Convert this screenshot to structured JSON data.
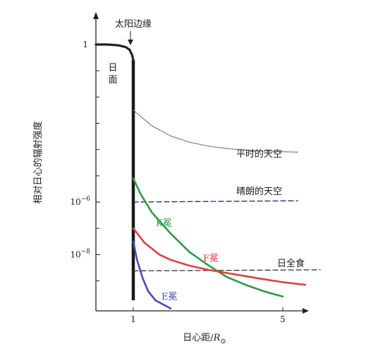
{
  "chart_data": {
    "type": "line",
    "title": "",
    "xlabel": "日心距/",
    "xlabel_unit_symbol": "R",
    "xlabel_unit_subscript": "⊙",
    "ylabel": "相对日心的辐射强度",
    "xscale": "linear",
    "yscale": "log",
    "xlim": [
      0.0,
      6.2
    ],
    "ylim_log10": [
      -10.0,
      0.4
    ],
    "x_ticks": [
      {
        "value": 1,
        "label": "1"
      },
      {
        "value": 5,
        "label": "5"
      }
    ],
    "y_ticks": [
      {
        "log10": 0,
        "base": "1",
        "exp": ""
      },
      {
        "log10": -6,
        "base": "10",
        "exp": "−6"
      },
      {
        "log10": -8,
        "base": "10",
        "exp": "−8"
      }
    ],
    "y_minor_ticks_log10": [
      -1,
      -2,
      -3,
      -4,
      -5,
      -7,
      -9
    ],
    "limb_marker": {
      "x": 1,
      "label": "太阳边缘"
    },
    "disk_label": [
      "日",
      "面"
    ],
    "series": [
      {
        "name": "日面",
        "color": "#222222",
        "style": "solid",
        "x": [
          0.0,
          0.3,
          0.6,
          0.8,
          0.9,
          0.97,
          1.0
        ],
        "log10_y": [
          0.0,
          0.0,
          -0.03,
          -0.1,
          -0.2,
          -0.4,
          -0.6
        ]
      },
      {
        "name": "平时的天空",
        "color": "#6a6a8a",
        "style": "dotted",
        "x": [
          1.0,
          1.5,
          2.0,
          2.5,
          3.0,
          3.5,
          4.0,
          4.5,
          5.0,
          5.4
        ],
        "log10_y": [
          -2.5,
          -3.1,
          -3.48,
          -3.72,
          -3.87,
          -3.96,
          -4.02,
          -4.06,
          -4.08,
          -4.1
        ]
      },
      {
        "name": "晴朗的天空",
        "color": "#1e2a5e",
        "style": "dashed",
        "x": [
          1.0,
          5.4
        ],
        "log10_y": [
          -6.0,
          -5.95
        ]
      },
      {
        "name": "日全食",
        "color": "#333333",
        "style": "dashed",
        "x": [
          1.0,
          6.0
        ],
        "log10_y": [
          -8.62,
          -8.58
        ]
      },
      {
        "name": "K冕",
        "color": "#2f9a4a",
        "style": "solid",
        "x": [
          1.0,
          1.2,
          1.5,
          2.0,
          2.5,
          3.0,
          3.5,
          4.0,
          4.5,
          5.0
        ],
        "log10_y": [
          -5.1,
          -5.7,
          -6.4,
          -7.2,
          -7.9,
          -8.4,
          -8.85,
          -9.15,
          -9.4,
          -9.6
        ]
      },
      {
        "name": "F冕",
        "color": "#e04040",
        "style": "solid",
        "x": [
          1.0,
          1.3,
          1.7,
          2.0,
          2.5,
          3.0,
          3.5,
          4.0,
          4.5,
          5.0,
          5.6
        ],
        "log10_y": [
          -7.0,
          -7.55,
          -8.0,
          -8.2,
          -8.42,
          -8.58,
          -8.7,
          -8.82,
          -8.94,
          -9.05,
          -9.15
        ]
      },
      {
        "name": "E冕",
        "color": "#4a4aaa",
        "style": "solid",
        "x": [
          1.0,
          1.1,
          1.25,
          1.4,
          1.6,
          1.8,
          2.0
        ],
        "log10_y": [
          -7.5,
          -8.2,
          -8.9,
          -9.4,
          -9.75,
          -9.9,
          -10.05
        ]
      }
    ],
    "series_label_text": {
      "平时的天空": "平时的天空",
      "晴朗的天空": "晴朗的天空",
      "日全食": "日全食",
      "K冕": "K冕",
      "F冕": "F冕",
      "E冕": "E冕"
    },
    "grid": false,
    "legend": "none"
  }
}
